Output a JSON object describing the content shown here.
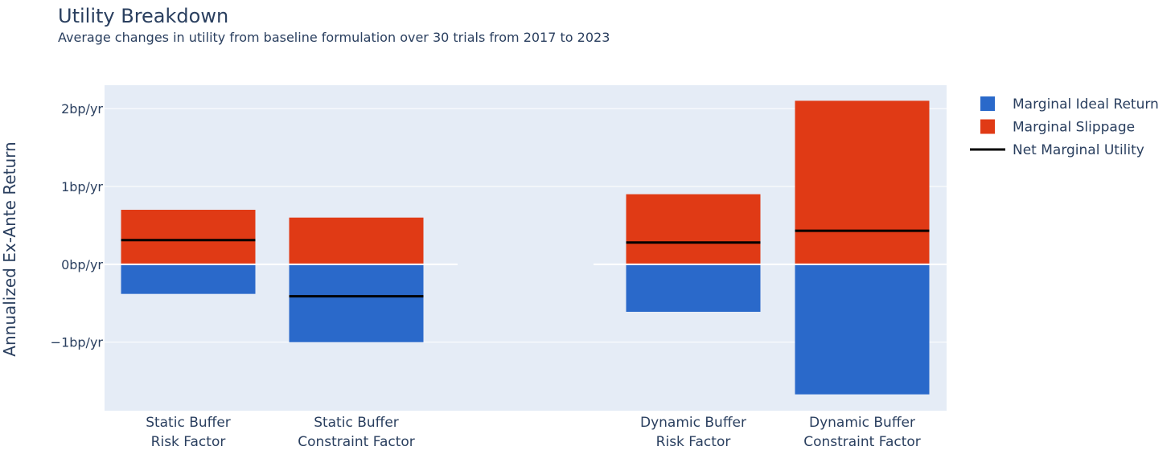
{
  "chart_data": {
    "type": "bar",
    "title": "Utility Breakdown",
    "subtitle": "Average changes in utility from baseline formulation over 30 trials from 2017 to 2023",
    "ylabel": "Annualized Ex-Ante Return",
    "ylim": [
      -1.88,
      2.3
    ],
    "yticks": [
      {
        "value": 2,
        "label": "2bp/yr"
      },
      {
        "value": 1,
        "label": "1bp/yr"
      },
      {
        "value": 0,
        "label": "0bp/yr"
      },
      {
        "value": -1,
        "label": "−1bp/yr"
      }
    ],
    "groups": [
      {
        "categories": [
          {
            "line1": "Static Buffer",
            "line2": "Risk Factor"
          },
          {
            "line1": "Static Buffer",
            "line2": "Constraint Factor"
          }
        ]
      },
      {
        "categories": [
          {
            "line1": "Dynamic Buffer",
            "line2": "Risk Factor"
          },
          {
            "line1": "Dynamic Buffer",
            "line2": "Constraint Factor"
          }
        ]
      }
    ],
    "series": [
      {
        "name": "Marginal Ideal Return",
        "kind": "bar",
        "color": "#2a69ca",
        "values": [
          -0.38,
          -1.0,
          -0.61,
          -1.67
        ]
      },
      {
        "name": "Marginal Slippage",
        "kind": "bar",
        "color": "#e03a15",
        "values": [
          0.7,
          0.6,
          0.9,
          2.1
        ]
      },
      {
        "name": "Net Marginal Utility",
        "kind": "line",
        "color": "#000000",
        "values": [
          0.31,
          -0.41,
          0.28,
          0.43
        ]
      }
    ],
    "legend_position": "right",
    "grid": true,
    "plot_bg": "#e5ecf6"
  }
}
